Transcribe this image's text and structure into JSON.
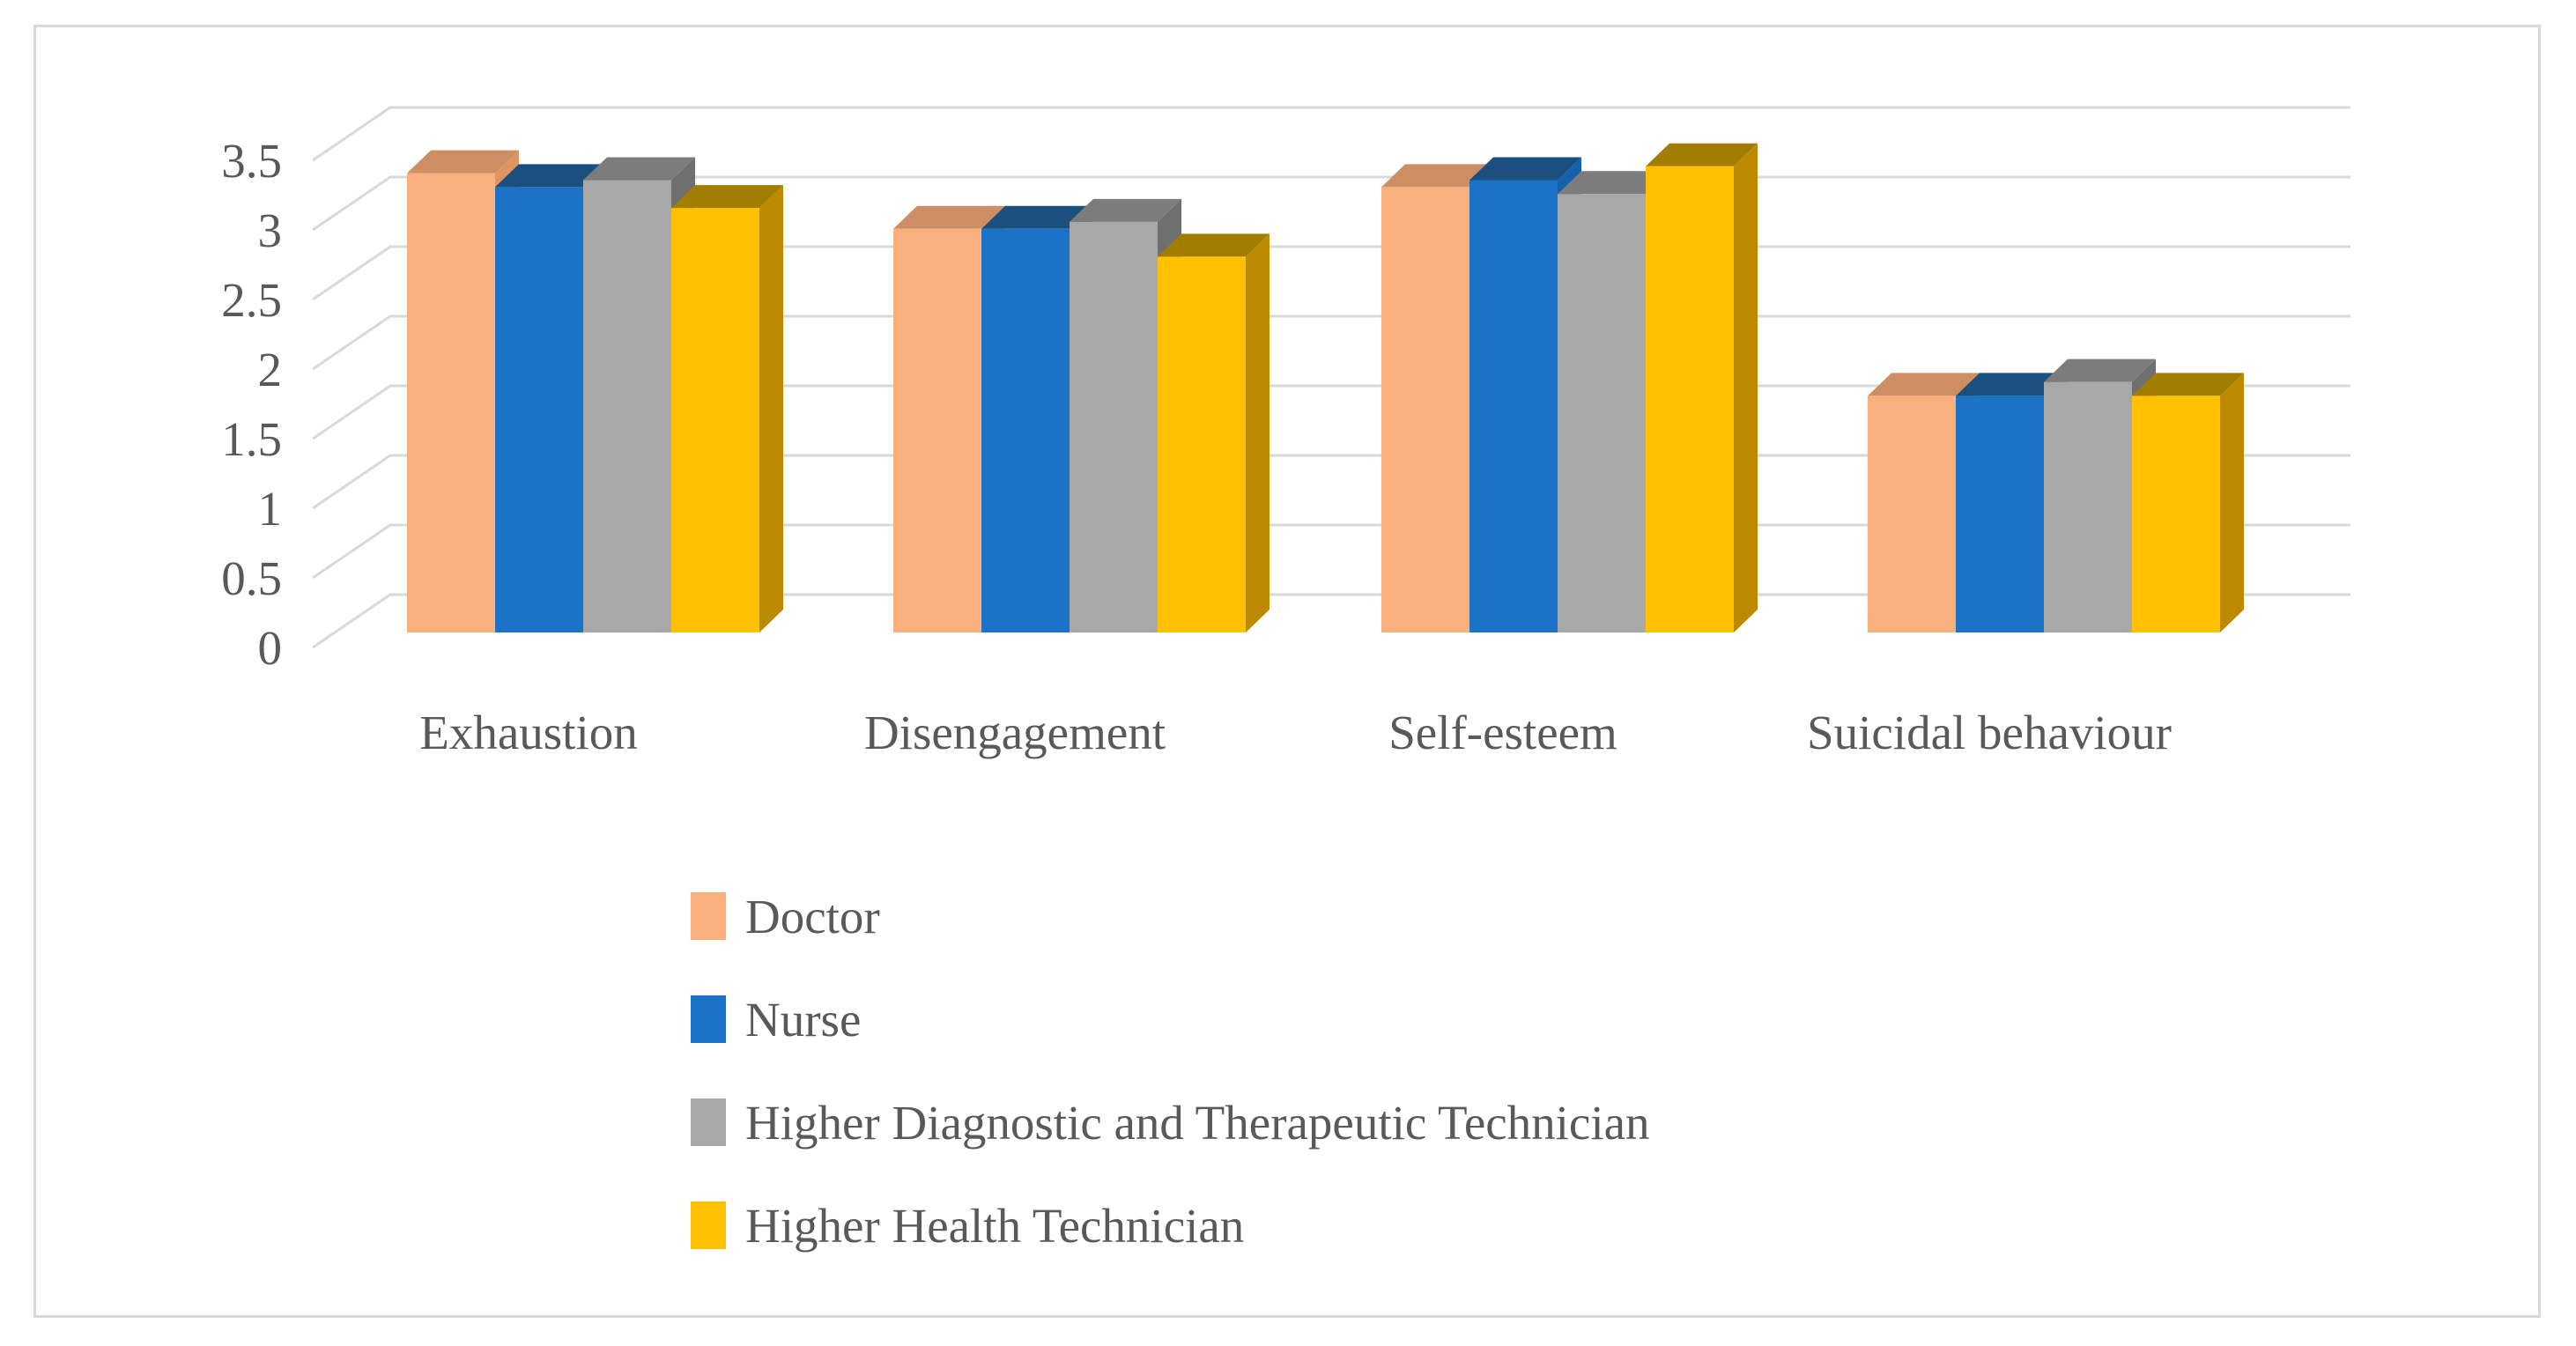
{
  "figure": {
    "background": "#FFFFFF",
    "border_color": "#D9D9D9"
  },
  "chart_data": {
    "type": "bar",
    "style": "3d-clustered-column",
    "categories": [
      "Exhaustion",
      "Disengagement",
      "Self-esteem",
      "Suicidal behaviour"
    ],
    "series": [
      {
        "name": "Doctor",
        "color": "#FAB07C",
        "color_top": "#CE8E63",
        "color_side": "#E0945F",
        "values": [
          3.3,
          2.9,
          3.2,
          1.7
        ]
      },
      {
        "name": "Nurse",
        "color": "#1B73C8",
        "color_top": "#1A4F7E",
        "color_side": "#1560AE",
        "values": [
          3.2,
          2.9,
          3.25,
          1.7
        ]
      },
      {
        "name": "Higher Diagnostic and Therapeutic Technician",
        "color": "#A8A8A8",
        "color_top": "#7C7C7C",
        "color_side": "#6F6F6F",
        "values": [
          3.25,
          2.95,
          3.15,
          1.8
        ]
      },
      {
        "name": "Higher Health Technician",
        "color": "#FFC102",
        "color_top": "#A17D00",
        "color_side": "#BB8A00",
        "values": [
          3.05,
          2.7,
          3.35,
          1.7
        ]
      }
    ],
    "ylim": [
      0,
      3.5
    ],
    "y_tick_step": 0.5,
    "y_ticks": [
      "0",
      "0.5",
      "1",
      "1.5",
      "2",
      "2.5",
      "3",
      "3.5"
    ],
    "grid": true,
    "legend_position": "bottom-left",
    "text_color": "#595959",
    "gridline_color": "#D9D9D9"
  }
}
